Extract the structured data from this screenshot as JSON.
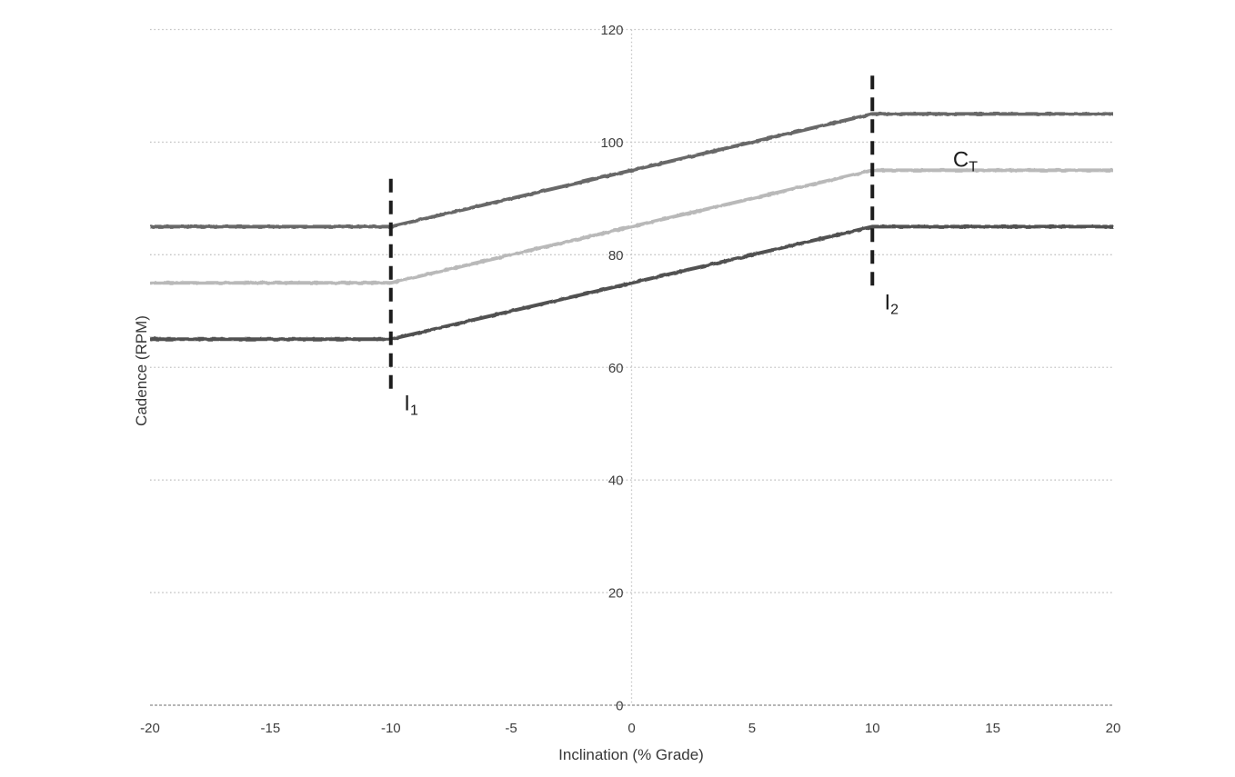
{
  "figure": {
    "background": "#ffffff",
    "text_color": "#3d3d3d",
    "annotation_color": "#1c1c1c",
    "gridline_color": "#c3c3c3"
  },
  "chart_data": {
    "type": "line",
    "title": "",
    "xlabel": "Inclination (% Grade)",
    "ylabel": "Cadence (RPM)",
    "xlim": [
      -20,
      20
    ],
    "ylim": [
      0,
      120
    ],
    "xticks": [
      -20,
      -15,
      -10,
      -5,
      0,
      5,
      10,
      15,
      20
    ],
    "yticks": [
      0,
      20,
      40,
      60,
      80,
      100,
      120
    ],
    "grid": "horizontal-dotted, vertical-axis-dotted-at-x0",
    "legend": "none",
    "series": [
      {
        "name": "upper-cadence-bound",
        "color": "#686868",
        "points": [
          [
            -20,
            85
          ],
          [
            -10,
            85
          ],
          [
            10,
            105
          ],
          [
            20,
            105
          ]
        ]
      },
      {
        "name": "target-cadence",
        "color": "#b9b9b9",
        "points": [
          [
            -20,
            75
          ],
          [
            -10,
            75
          ],
          [
            10,
            95
          ],
          [
            20,
            95
          ]
        ]
      },
      {
        "name": "lower-cadence-bound",
        "color": "#515151",
        "points": [
          [
            -20,
            65
          ],
          [
            -10,
            65
          ],
          [
            10,
            85
          ],
          [
            20,
            85
          ]
        ]
      }
    ],
    "annotations": [
      {
        "kind": "vertical-dashed-line",
        "x": -10,
        "y_from": 56,
        "y_to": 93.5,
        "label": {
          "main": "I",
          "sub": "1"
        },
        "label_at": {
          "x": -9.45,
          "y": 52.4
        }
      },
      {
        "kind": "vertical-dashed-line",
        "x": 10,
        "y_from": 74.3,
        "y_to": 111.8,
        "label": {
          "main": "I",
          "sub": "2"
        },
        "label_at": {
          "x": 10.5,
          "y": 70.3
        }
      },
      {
        "kind": "series-label",
        "series": "target-cadence",
        "label": {
          "main": "C",
          "sub": "T"
        },
        "label_at": {
          "x": 13.35,
          "y": 95.6
        }
      }
    ]
  }
}
